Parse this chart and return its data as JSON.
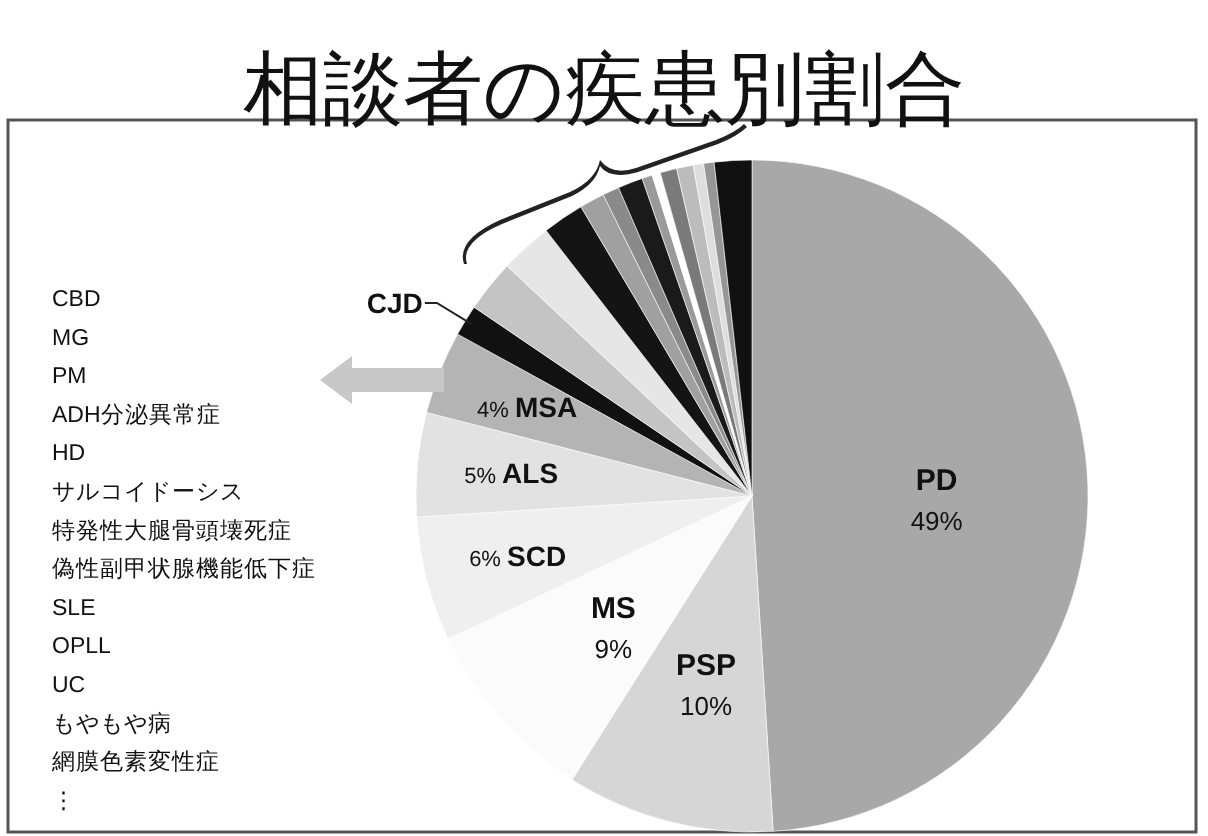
{
  "chart_data": {
    "type": "pie",
    "title": "相談者の疾患別割合",
    "categories": [
      "PD",
      "PSP",
      "MS",
      "SCD",
      "ALS",
      "MSA",
      "CJD",
      null,
      null,
      null,
      null,
      null,
      null,
      null,
      null,
      null,
      null,
      null,
      null,
      null
    ],
    "values": [
      49,
      10,
      9,
      6,
      5,
      4,
      1.5,
      2.5,
      2.5,
      2,
      1.2,
      0.8,
      1.2,
      0.5,
      0.4,
      0.8,
      0.8,
      0.5,
      0.5,
      1.8
    ],
    "value_labels": [
      "49%",
      "10%",
      "9%",
      "6%",
      "5%",
      "4%",
      null,
      null,
      null,
      null,
      null,
      null,
      null,
      null,
      null,
      null,
      null,
      null,
      null,
      null
    ],
    "colors": [
      "#a8a8a8",
      "#d6d6d6",
      "#fbfbfb",
      "#efefef",
      "#e2e2e2",
      "#b4b4b4",
      "#111111",
      "#c4c4c4",
      "#e6e6e6",
      "#141414",
      "#a0a0a0",
      "#8a8a8a",
      "#1a1a1a",
      "#9a9a9a",
      "#ffffff",
      "#7a7a7a",
      "#bcbcbc",
      "#dedede",
      "#969696",
      "#111111"
    ],
    "annotations": [
      "CBD",
      "MG",
      "PM",
      "ADH分泌異常症",
      "HD",
      "サルコイドーシス",
      "特発性大腿骨頭壊死症",
      "偽性副甲状腺機能低下症",
      "SLE",
      "OPLL",
      "UC",
      "もやもや病",
      "網膜色素変性症",
      "⋮"
    ]
  }
}
